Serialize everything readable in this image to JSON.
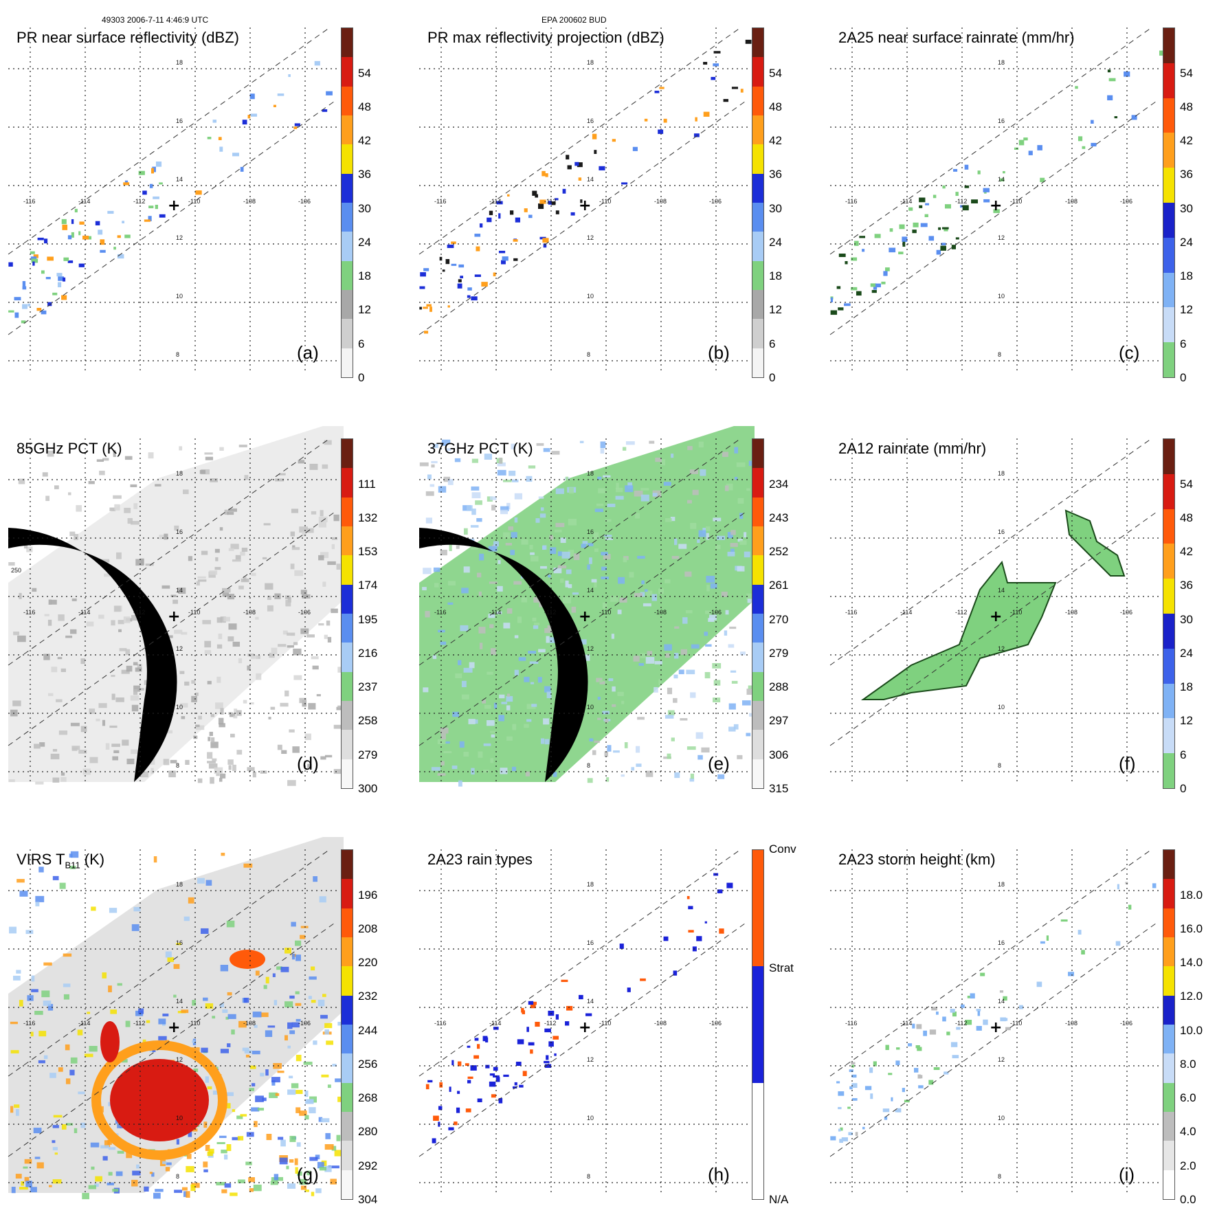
{
  "header": {
    "orbit_time": "49303 2006-7-11 4:46:9 UTC",
    "storm_id": "EPA 200602 BUD"
  },
  "map_axes": {
    "longitude_labels": [
      "-116",
      "-114",
      "-112",
      "-110",
      "-108",
      "-106"
    ],
    "latitude_labels": [
      "18",
      "16",
      "14",
      "12",
      "10",
      "8"
    ],
    "rings_label": "250"
  },
  "panels": [
    {
      "id": "a",
      "title": "PR near surface reflectivity (dBZ)",
      "label": "(a)",
      "colorbar": {
        "colors": [
          "#f4f4f4",
          "#cfcfcf",
          "#a8a8a8",
          "#7fd17f",
          "#a8ccf5",
          "#5a8ef0",
          "#1c2ed8",
          "#f5e200",
          "#ff9f1c",
          "#ff5a0a",
          "#d81b12",
          "#6a1f12"
        ],
        "ticks": [
          "0",
          "6",
          "12",
          "18",
          "24",
          "30",
          "36",
          "42",
          "48",
          "54"
        ]
      }
    },
    {
      "id": "b",
      "title": "PR max reflectivity projection (dBZ)",
      "label": "(b)",
      "colorbar": {
        "colors": [
          "#f4f4f4",
          "#cfcfcf",
          "#a8a8a8",
          "#7fd17f",
          "#a8ccf5",
          "#5a8ef0",
          "#1c2ed8",
          "#f5e200",
          "#ff9f1c",
          "#ff5a0a",
          "#d81b12",
          "#6a1f12"
        ],
        "ticks": [
          "0",
          "6",
          "12",
          "18",
          "24",
          "30",
          "36",
          "42",
          "48",
          "54"
        ]
      }
    },
    {
      "id": "c",
      "title": "2A25 near surface rainrate (mm/hr)",
      "label": "(c)",
      "colorbar": {
        "colors": [
          "#7fd17f",
          "#c8dcf7",
          "#7fb2f5",
          "#3d62ea",
          "#1a22c9",
          "#f5e200",
          "#ff9f1c",
          "#ff5a0a",
          "#d81b12",
          "#6a1f12"
        ],
        "ticks": [
          "0",
          "6",
          "12",
          "18",
          "24",
          "30",
          "36",
          "42",
          "48",
          "54"
        ]
      }
    },
    {
      "id": "d",
      "title": "85GHz PCT (K)",
      "label": "(d)",
      "colorbar": {
        "colors": [
          "#f7f7f7",
          "#dedede",
          "#bdbdbd",
          "#7fd17f",
          "#a8ccf5",
          "#5a8ef0",
          "#1c2ed8",
          "#f5e200",
          "#ff9f1c",
          "#ff5a0a",
          "#d81b12",
          "#6a1f12"
        ],
        "ticks": [
          "300",
          "279",
          "258",
          "237",
          "216",
          "195",
          "174",
          "153",
          "132",
          "111"
        ]
      }
    },
    {
      "id": "e",
      "title": "37GHz PCT (K)",
      "label": "(e)",
      "colorbar": {
        "colors": [
          "#f7f7f7",
          "#dedede",
          "#bdbdbd",
          "#7fd17f",
          "#a8ccf5",
          "#5a8ef0",
          "#1c2ed8",
          "#f5e200",
          "#ff9f1c",
          "#ff5a0a",
          "#d81b12",
          "#6a1f12"
        ],
        "ticks": [
          "315",
          "306",
          "297",
          "288",
          "279",
          "270",
          "261",
          "252",
          "243",
          "234"
        ]
      }
    },
    {
      "id": "f",
      "title": "2A12 rainrate (mm/hr)",
      "label": "(f)",
      "colorbar": {
        "colors": [
          "#7fd17f",
          "#c8dcf7",
          "#7fb2f5",
          "#3d62ea",
          "#1a22c9",
          "#f5e200",
          "#ff9f1c",
          "#ff5a0a",
          "#d81b12",
          "#6a1f12"
        ],
        "ticks": [
          "0",
          "6",
          "12",
          "18",
          "24",
          "30",
          "36",
          "42",
          "48",
          "54"
        ]
      }
    },
    {
      "id": "g",
      "title": "VIRS T",
      "title_subscript": "B11",
      "title_suffix": " (K)",
      "label": "(g)",
      "colorbar": {
        "colors": [
          "#f7f7f7",
          "#dedede",
          "#bdbdbd",
          "#7fd17f",
          "#a8ccf5",
          "#5a8ef0",
          "#1c2ed8",
          "#f5e200",
          "#ff9f1c",
          "#ff5a0a",
          "#d81b12",
          "#6a1f12"
        ],
        "ticks": [
          "304",
          "292",
          "280",
          "268",
          "256",
          "244",
          "232",
          "220",
          "208",
          "196"
        ]
      }
    },
    {
      "id": "h",
      "title": "2A23 rain types",
      "label": "(h)",
      "colorbar": {
        "colors": [
          "#ffffff",
          "#1a22d9",
          "#ff5a0a"
        ],
        "ticks": [
          "N/A",
          "Strat",
          "Conv"
        ]
      }
    },
    {
      "id": "i",
      "title": "2A23 storm height (km)",
      "label": "(i)",
      "colorbar": {
        "colors": [
          "#ffffff",
          "#e6e6e6",
          "#bdbdbd",
          "#7fd17f",
          "#c8dcf7",
          "#7fb2f5",
          "#1a22c9",
          "#f5e200",
          "#ff9f1c",
          "#ff5a0a",
          "#d81b12",
          "#6a1f12"
        ],
        "ticks": [
          "0.0",
          "2.0",
          "4.0",
          "6.0",
          "8.0",
          "10.0",
          "12.0",
          "14.0",
          "16.0",
          "18.0"
        ]
      }
    }
  ]
}
